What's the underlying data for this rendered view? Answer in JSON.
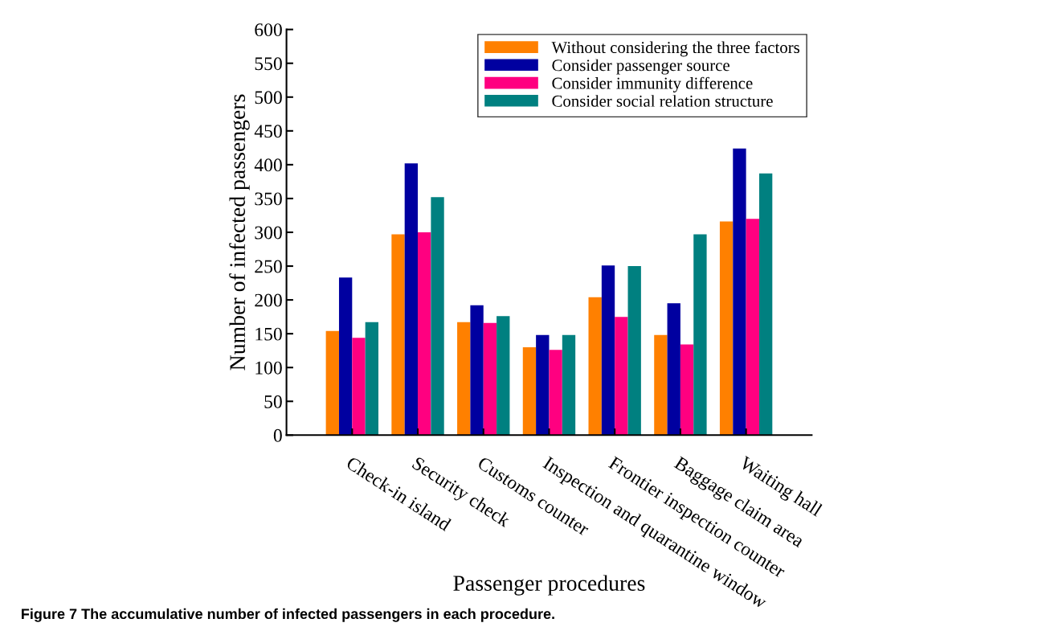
{
  "chart_data": {
    "type": "bar",
    "xlabel": "Passenger procedures",
    "ylabel": "Number of infected passengers",
    "categories": [
      "Check-in island",
      "Security check",
      "Customs counter",
      "Inspection and quarantine window",
      "Frontier inspection counter",
      "Baggage claim area",
      "Waiting hall"
    ],
    "series": [
      {
        "name": "Without considering the three factors",
        "color": "#ff8000",
        "values": [
          154,
          297,
          167,
          130,
          204,
          148,
          316
        ]
      },
      {
        "name": "Consider passenger source",
        "color": "#0000a0",
        "values": [
          233,
          402,
          192,
          148,
          251,
          195,
          424
        ]
      },
      {
        "name": "Consider immunity difference",
        "color": "#ff0080",
        "values": [
          144,
          300,
          166,
          126,
          175,
          134,
          320
        ]
      },
      {
        "name": "Consider social relation structure",
        "color": "#008080",
        "values": [
          167,
          352,
          176,
          148,
          250,
          297,
          387
        ]
      }
    ],
    "ylim": [
      0,
      600
    ],
    "yticks": [
      0,
      50,
      100,
      150,
      200,
      250,
      300,
      350,
      400,
      450,
      500,
      550,
      600
    ],
    "legend": "top right",
    "grid": false,
    "annotations": [
      "Figure 7 The accumulative number of infected passengers in each procedure."
    ]
  }
}
